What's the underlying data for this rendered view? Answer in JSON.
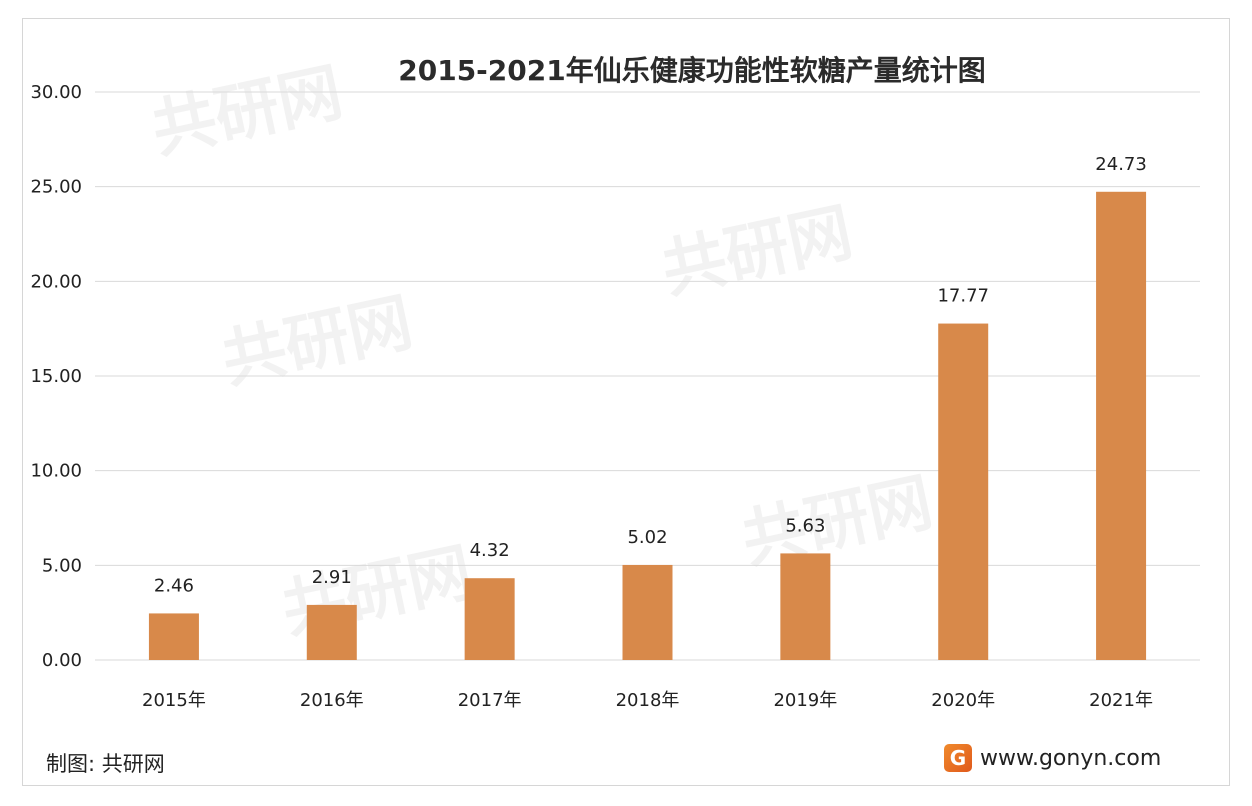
{
  "chart_data": {
    "type": "bar",
    "title": "2015-2021年仙乐健康功能性软糖产量统计图",
    "categories": [
      "2015年",
      "2016年",
      "2017年",
      "2018年",
      "2019年",
      "2020年",
      "2021年"
    ],
    "values": [
      2.46,
      2.91,
      4.32,
      5.02,
      5.63,
      17.77,
      24.73
    ],
    "value_labels": [
      "2.46",
      "2.91",
      "4.32",
      "5.02",
      "5.63",
      "17.77",
      "24.73"
    ],
    "ylim": [
      0,
      30
    ],
    "yticks": [
      "0.00",
      "5.00",
      "10.00",
      "15.00",
      "20.00",
      "25.00",
      "30.00"
    ],
    "grid": true,
    "bar_color": "#d8894a"
  },
  "footer": {
    "source": "制图: 共研网",
    "logo_letter": "G",
    "site": "www.gonyn.com"
  },
  "watermark": {
    "brand": "共研网"
  }
}
